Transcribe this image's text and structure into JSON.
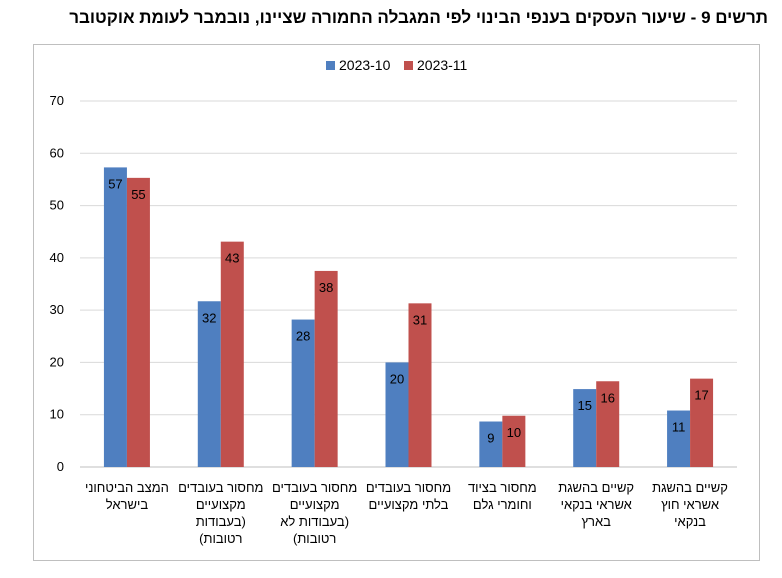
{
  "title": "תרשים 9 - שיעור העסקים בענפי הבינוי לפי המגבלה החמורה שציינו, נובמבר לעומת אוקטובר",
  "colors": {
    "series1": "#4f7fc0",
    "series2": "#c0504d",
    "grid": "#d9d9d9"
  },
  "chart_data": {
    "type": "bar",
    "title": "תרשים 9 - שיעור העסקים בענפי הבינוי לפי המגבלה החמורה שציינו, נובמבר לעומת אוקטובר",
    "categories": [
      [
        "המצב הביטחוני",
        "בישראל"
      ],
      [
        "מחסור בעובדים",
        "מקצועיים",
        "(בעבודות",
        "רטובות)"
      ],
      [
        "מחסור בעובדים",
        "מקצועיים",
        "(בעבודות לא",
        "רטובות)"
      ],
      [
        "מחסור בעובדים",
        "בלתי מקצועיים"
      ],
      [
        "מחסור בציוד",
        "וחומרי גלם"
      ],
      [
        "קשיים בהשגת",
        "אשראי בנקאי",
        "בארץ"
      ],
      [
        "קשיים בהשגת",
        "אשראי חוץ",
        "בנקאי"
      ]
    ],
    "series": [
      {
        "name": "2023-10",
        "values": [
          57.3,
          31.7,
          28.2,
          20.0,
          8.7,
          14.9,
          10.8
        ],
        "labels": [
          "57",
          "32",
          "28",
          "20",
          "9",
          "15",
          "11"
        ]
      },
      {
        "name": "2023-11",
        "values": [
          55.3,
          43.1,
          37.5,
          31.3,
          9.8,
          16.4,
          16.9
        ],
        "labels": [
          "55",
          "43",
          "38",
          "31",
          "10",
          "16",
          "17"
        ]
      }
    ],
    "yticks": [
      "0",
      "10",
      "20",
      "30",
      "40",
      "50",
      "60",
      "70"
    ],
    "ylim": [
      0,
      70
    ],
    "grid": true,
    "legend_position": "top-center",
    "xlabel": "",
    "ylabel": ""
  }
}
